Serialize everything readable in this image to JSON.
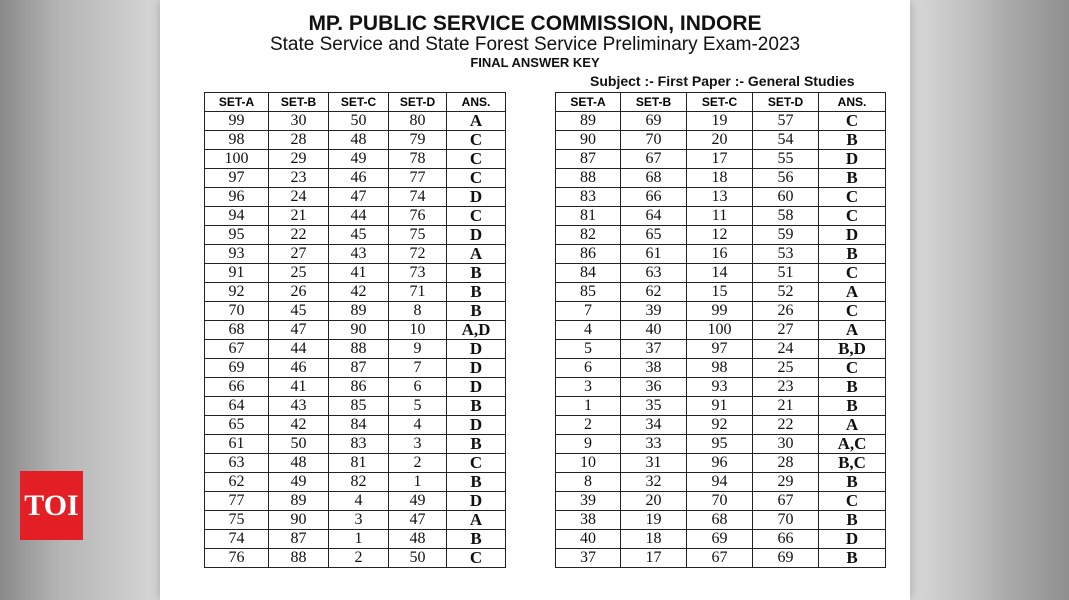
{
  "header": {
    "title": "MP. PUBLIC SERVICE COMMISSION, INDORE",
    "subtitle": "State Service and State Forest Service Preliminary Exam-2023",
    "doc_type": "FINAL ANSWER KEY",
    "subject": "Subject :- First Paper :- General Studies"
  },
  "columns": [
    "SET-A",
    "SET-B",
    "SET-C",
    "SET-D",
    "ANS."
  ],
  "left_table": [
    [
      "99",
      "30",
      "50",
      "80",
      "A"
    ],
    [
      "98",
      "28",
      "48",
      "79",
      "C"
    ],
    [
      "100",
      "29",
      "49",
      "78",
      "C"
    ],
    [
      "97",
      "23",
      "46",
      "77",
      "C"
    ],
    [
      "96",
      "24",
      "47",
      "74",
      "D"
    ],
    [
      "94",
      "21",
      "44",
      "76",
      "C"
    ],
    [
      "95",
      "22",
      "45",
      "75",
      "D"
    ],
    [
      "93",
      "27",
      "43",
      "72",
      "A"
    ],
    [
      "91",
      "25",
      "41",
      "73",
      "B"
    ],
    [
      "92",
      "26",
      "42",
      "71",
      "B"
    ],
    [
      "70",
      "45",
      "89",
      "8",
      "B"
    ],
    [
      "68",
      "47",
      "90",
      "10",
      "A,D"
    ],
    [
      "67",
      "44",
      "88",
      "9",
      "D"
    ],
    [
      "69",
      "46",
      "87",
      "7",
      "D"
    ],
    [
      "66",
      "41",
      "86",
      "6",
      "D"
    ],
    [
      "64",
      "43",
      "85",
      "5",
      "B"
    ],
    [
      "65",
      "42",
      "84",
      "4",
      "D"
    ],
    [
      "61",
      "50",
      "83",
      "3",
      "B"
    ],
    [
      "63",
      "48",
      "81",
      "2",
      "C"
    ],
    [
      "62",
      "49",
      "82",
      "1",
      "B"
    ],
    [
      "77",
      "89",
      "4",
      "49",
      "D"
    ],
    [
      "75",
      "90",
      "3",
      "47",
      "A"
    ],
    [
      "74",
      "87",
      "1",
      "48",
      "B"
    ],
    [
      "76",
      "88",
      "2",
      "50",
      "C"
    ]
  ],
  "right_table": [
    [
      "89",
      "69",
      "19",
      "57",
      "C"
    ],
    [
      "90",
      "70",
      "20",
      "54",
      "B"
    ],
    [
      "87",
      "67",
      "17",
      "55",
      "D"
    ],
    [
      "88",
      "68",
      "18",
      "56",
      "B"
    ],
    [
      "83",
      "66",
      "13",
      "60",
      "C"
    ],
    [
      "81",
      "64",
      "11",
      "58",
      "C"
    ],
    [
      "82",
      "65",
      "12",
      "59",
      "D"
    ],
    [
      "86",
      "61",
      "16",
      "53",
      "B"
    ],
    [
      "84",
      "63",
      "14",
      "51",
      "C"
    ],
    [
      "85",
      "62",
      "15",
      "52",
      "A"
    ],
    [
      "7",
      "39",
      "99",
      "26",
      "C"
    ],
    [
      "4",
      "40",
      "100",
      "27",
      "A"
    ],
    [
      "5",
      "37",
      "97",
      "24",
      "B,D"
    ],
    [
      "6",
      "38",
      "98",
      "25",
      "C"
    ],
    [
      "3",
      "36",
      "93",
      "23",
      "B"
    ],
    [
      "1",
      "35",
      "91",
      "21",
      "B"
    ],
    [
      "2",
      "34",
      "92",
      "22",
      "A"
    ],
    [
      "9",
      "33",
      "95",
      "30",
      "A,C"
    ],
    [
      "10",
      "31",
      "96",
      "28",
      "B,C"
    ],
    [
      "8",
      "32",
      "94",
      "29",
      "B"
    ],
    [
      "39",
      "20",
      "70",
      "67",
      "C"
    ],
    [
      "38",
      "19",
      "68",
      "70",
      "B"
    ],
    [
      "40",
      "18",
      "69",
      "66",
      "D"
    ],
    [
      "37",
      "17",
      "67",
      "69",
      "B"
    ]
  ],
  "logo": {
    "text": "TOI",
    "color": "#e31e24"
  }
}
